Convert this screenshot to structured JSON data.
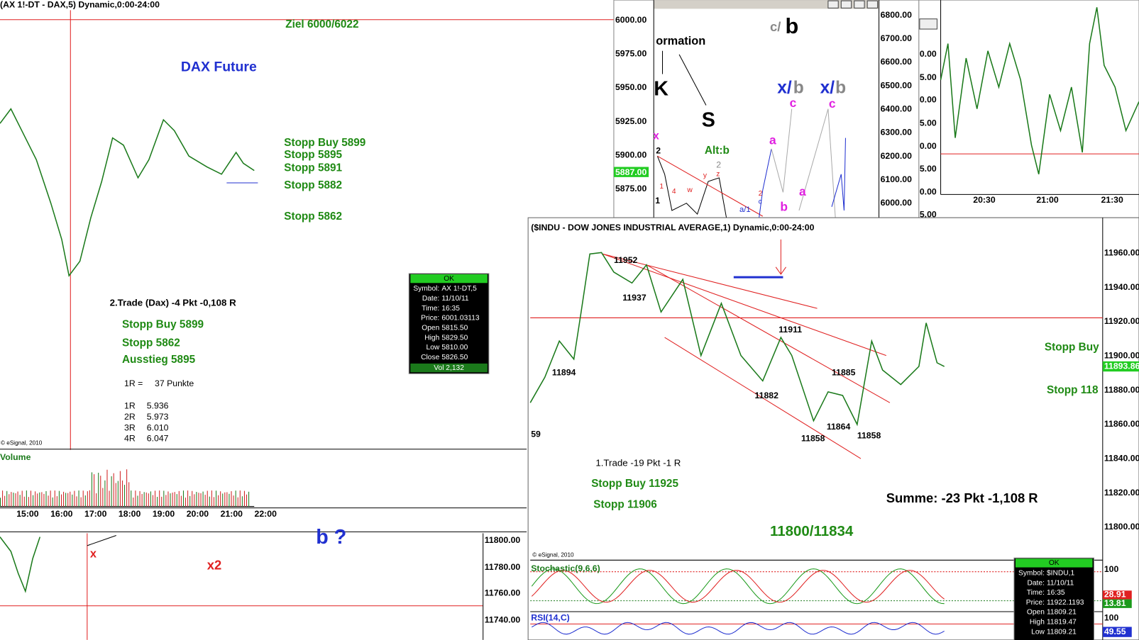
{
  "dax": {
    "title": "(AX 1!-DT - DAX,5) Dynamic,0:00-24:00",
    "target": "Ziel 6000/6022",
    "name": "DAX Future",
    "stops": [
      "Stopp Buy 5899",
      "Stopp 5895",
      "Stopp 5891",
      "Stopp 5882",
      "Stopp 5862"
    ],
    "trade": "2.Trade (Dax) -4 Pkt -0,108 R",
    "trade_stops": [
      "Stopp Buy 5899",
      "Stopp 5862",
      "Ausstieg 5895"
    ],
    "r_label": "1R =",
    "r_text": "37 Punkte",
    "r_levels": [
      {
        "name": "1R",
        "value": "5.936"
      },
      {
        "name": "2R",
        "value": "5.973"
      },
      {
        "name": "3R",
        "value": "6.010"
      },
      {
        "name": "4R",
        "value": "6.047"
      }
    ],
    "copyright": "© eSignal, 2010",
    "volume": "Volume",
    "times": [
      "15:00",
      "16:00",
      "17:00",
      "18:00",
      "19:00",
      "20:00",
      "21:00",
      "22:00"
    ]
  },
  "dax_info": {
    "status": "OK",
    "rows": [
      {
        "label": "Symbol:",
        "value": "AX 1!-DT,5"
      },
      {
        "label": "Date:",
        "value": "11/10/11"
      },
      {
        "label": "Time:",
        "value": "16:35"
      },
      {
        "label": "Price:",
        "value": "6001.03113"
      },
      {
        "label": "Open",
        "value": "5815.50"
      },
      {
        "label": "High",
        "value": "5829.50"
      },
      {
        "label": "Low",
        "value": "5810.00"
      },
      {
        "label": "Close",
        "value": "5826.50"
      }
    ],
    "volume": "Vol 2,132"
  },
  "wave_chart": {
    "left_axis": [
      "6000.00",
      "5975.00",
      "5950.00",
      "5925.00",
      "5900.00",
      "5875.00"
    ],
    "current": "5887.00",
    "right_axis": [
      "6800.00",
      "6700.00",
      "6600.00",
      "6500.00",
      "6400.00",
      "6300.00",
      "6200.00",
      "6100.00",
      "6000.00"
    ],
    "labels": [
      "ormation",
      "K",
      "S",
      "c/",
      "b",
      "x/",
      "b",
      "x/",
      "b",
      "c",
      "c",
      "a",
      "a",
      "b",
      "Alt:b",
      "x",
      "2",
      "2",
      "z",
      "y",
      "w",
      "4",
      "1",
      "1",
      "a/1",
      "2",
      "c"
    ]
  },
  "intraday": {
    "axis": [
      "0.00",
      "5.00",
      "0.00",
      "5.00",
      "0.00",
      "5.00",
      "0.00",
      "5.00"
    ],
    "times": [
      "20:30",
      "21:00",
      "21:30"
    ]
  },
  "dow_lower": {
    "axis": [
      "11800.00",
      "11780.00",
      "11760.00",
      "11740.00"
    ],
    "labels": [
      "x",
      "x2",
      "b ?"
    ]
  },
  "indu": {
    "title": "($INDU - DOW JONES INDUSTRIAL AVERAGE,1) Dynamic,0:00-24:00",
    "axis": [
      "11960.00",
      "11940.00",
      "11920.00",
      "11900.00",
      "11880.00",
      "11860.00",
      "11840.00",
      "11820.00",
      "11800.00"
    ],
    "current": "11893.86",
    "points": [
      "11952",
      "11937",
      "11894",
      "11911",
      "11882",
      "11885",
      "11864",
      "11858",
      "11858",
      "59"
    ],
    "trade": "1.Trade -19 Pkt -1 R",
    "trade_stops": [
      "Stopp Buy 11925",
      "Stopp 11906"
    ],
    "sum": "Summe: -23 Pkt -1,108 R",
    "target": "11800/11834",
    "right_stops": [
      "Stopp Buy",
      "Stopp 118"
    ],
    "copyright": "© eSignal, 2010",
    "stoch": {
      "name": "Stochastic(9,6,6)",
      "max": "100",
      "k": "28.91",
      "d": "13.81"
    },
    "rsi": {
      "name": "RSI(14,C)",
      "max": "100",
      "value": "49.55"
    }
  },
  "indu_info": {
    "status": "OK",
    "rows": [
      {
        "label": "Symbol:",
        "value": "$INDU,1"
      },
      {
        "label": "Date:",
        "value": "11/10/11"
      },
      {
        "label": "Time:",
        "value": "16:35"
      },
      {
        "label": "Price:",
        "value": "11922.1193"
      },
      {
        "label": "Open",
        "value": "11809.21"
      },
      {
        "label": "High",
        "value": "11819.47"
      },
      {
        "label": "Low",
        "value": "11809.21"
      }
    ]
  }
}
